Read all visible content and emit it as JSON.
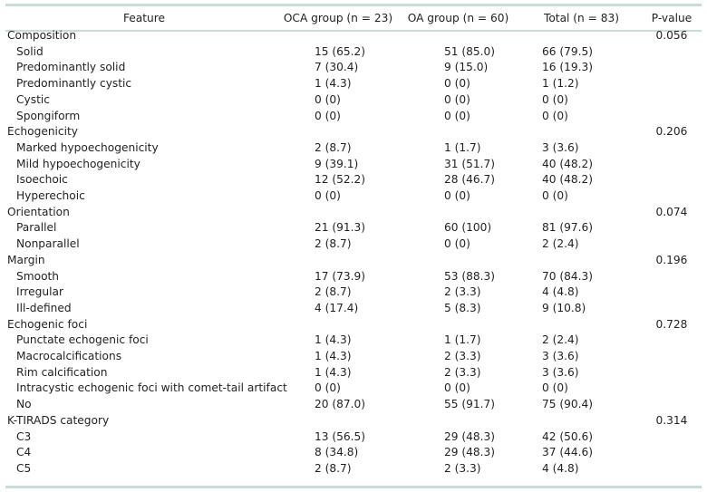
{
  "header": {
    "feature": "Feature",
    "oca": "OCA group (n = 23)",
    "oa": "OA group (n = 60)",
    "total": "Total (n = 83)",
    "p": "P-value"
  },
  "rows": [
    {
      "label": "Composition",
      "sub": false,
      "oca": "",
      "oa": "",
      "total": "",
      "p": "0.056"
    },
    {
      "label": "Solid",
      "sub": true,
      "oca": "15 (65.2)",
      "oa": "51 (85.0)",
      "total": "66 (79.5)",
      "p": ""
    },
    {
      "label": "Predominantly solid",
      "sub": true,
      "oca": "7 (30.4)",
      "oa": "9 (15.0)",
      "total": "16 (19.3)",
      "p": ""
    },
    {
      "label": "Predominantly cystic",
      "sub": true,
      "oca": "1 (4.3)",
      "oa": "0 (0)",
      "total": "1 (1.2)",
      "p": ""
    },
    {
      "label": "Cystic",
      "sub": true,
      "oca": "0 (0)",
      "oa": "0 (0)",
      "total": "0 (0)",
      "p": ""
    },
    {
      "label": "Spongiform",
      "sub": true,
      "oca": "0 (0)",
      "oa": "0 (0)",
      "total": "0 (0)",
      "p": ""
    },
    {
      "label": "Echogenicity",
      "sub": false,
      "oca": "",
      "oa": "",
      "total": "",
      "p": "0.206"
    },
    {
      "label": "Marked hypoechogenicity",
      "sub": true,
      "oca": "2 (8.7)",
      "oa": "1 (1.7)",
      "total": "3 (3.6)",
      "p": ""
    },
    {
      "label": "Mild hypoechogenicity",
      "sub": true,
      "oca": "9 (39.1)",
      "oa": "31 (51.7)",
      "total": "40 (48.2)",
      "p": ""
    },
    {
      "label": "Isoechoic",
      "sub": true,
      "oca": "12 (52.2)",
      "oa": "28 (46.7)",
      "total": "40 (48.2)",
      "p": ""
    },
    {
      "label": "Hyperechoic",
      "sub": true,
      "oca": "0 (0)",
      "oa": "0 (0)",
      "total": "0 (0)",
      "p": ""
    },
    {
      "label": "Orientation",
      "sub": false,
      "oca": "",
      "oa": "",
      "total": "",
      "p": "0.074"
    },
    {
      "label": "Parallel",
      "sub": true,
      "oca": "21 (91.3)",
      "oa": "60 (100)",
      "total": "81 (97.6)",
      "p": ""
    },
    {
      "label": "Nonparallel",
      "sub": true,
      "oca": "2 (8.7)",
      "oa": "0 (0)",
      "total": "2 (2.4)",
      "p": ""
    },
    {
      "label": "Margin",
      "sub": false,
      "oca": "",
      "oa": "",
      "total": "",
      "p": "0.196"
    },
    {
      "label": "Smooth",
      "sub": true,
      "oca": "17 (73.9)",
      "oa": "53 (88.3)",
      "total": "70 (84.3)",
      "p": ""
    },
    {
      "label": "Irregular",
      "sub": true,
      "oca": "2 (8.7)",
      "oa": "2 (3.3)",
      "total": "4 (4.8)",
      "p": ""
    },
    {
      "label": "Ill-defined",
      "sub": true,
      "oca": "4 (17.4)",
      "oa": "5 (8.3)",
      "total": "9 (10.8)",
      "p": ""
    },
    {
      "label": "Echogenic foci",
      "sub": false,
      "oca": "",
      "oa": "",
      "total": "",
      "p": "0.728"
    },
    {
      "label": "Punctate echogenic foci",
      "sub": true,
      "oca": "1 (4.3)",
      "oa": "1 (1.7)",
      "total": "2 (2.4)",
      "p": ""
    },
    {
      "label": "Macrocalcifications",
      "sub": true,
      "oca": "1 (4.3)",
      "oa": "2 (3.3)",
      "total": "3 (3.6)",
      "p": ""
    },
    {
      "label": "Rim calcification",
      "sub": true,
      "oca": "1 (4.3)",
      "oa": "2 (3.3)",
      "total": "3 (3.6)",
      "p": ""
    },
    {
      "label": "Intracystic echogenic foci with comet-tail artifact",
      "sub": true,
      "oca": "0 (0)",
      "oa": "0 (0)",
      "total": "0 (0)",
      "p": ""
    },
    {
      "label": "No",
      "sub": true,
      "oca": "20 (87.0)",
      "oa": "55 (91.7)",
      "total": "75 (90.4)",
      "p": ""
    },
    {
      "label": "K-TIRADS category",
      "sub": false,
      "oca": "",
      "oa": "",
      "total": "",
      "p": "0.314"
    },
    {
      "label": "C3",
      "sub": true,
      "oca": "13 (56.5)",
      "oa": "29 (48.3)",
      "total": "42 (50.6)",
      "p": ""
    },
    {
      "label": "C4",
      "sub": true,
      "oca": "8 (34.8)",
      "oa": "29 (48.3)",
      "total": "37 (44.6)",
      "p": ""
    },
    {
      "label": "C5",
      "sub": true,
      "oca": "2 (8.7)",
      "oa": "2 (3.3)",
      "total": "4 (4.8)",
      "p": ""
    }
  ]
}
